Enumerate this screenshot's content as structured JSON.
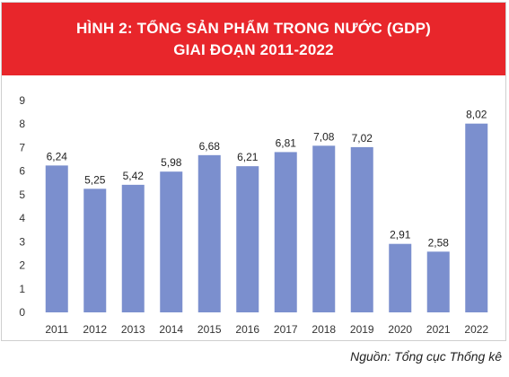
{
  "header": {
    "title_line1": "HÌNH 2: TỔNG SẢN PHẨM TRONG NƯỚC (GDP)",
    "title_line2": "GIAI ĐOẠN 2011-2022"
  },
  "source": "Nguồn: Tổng cục Thống kê",
  "chart_data": {
    "type": "bar",
    "title": "HÌNH 2: TỔNG SẢN PHẨM TRONG NƯỚC (GDP) GIAI ĐOẠN 2011-2022",
    "categories": [
      "2011",
      "2012",
      "2013",
      "2014",
      "2015",
      "2016",
      "2017",
      "2018",
      "2019",
      "2020",
      "2021",
      "2022"
    ],
    "values": [
      6.24,
      5.25,
      5.42,
      5.98,
      6.68,
      6.21,
      6.81,
      7.08,
      7.02,
      2.91,
      2.58,
      8.02
    ],
    "value_labels": [
      "6,24",
      "5,25",
      "5,42",
      "5,98",
      "6,68",
      "6,21",
      "6,81",
      "7,08",
      "7,02",
      "2,91",
      "2,58",
      "8,02"
    ],
    "yticks": [
      "0",
      "1",
      "2",
      "3",
      "4",
      "5",
      "6",
      "7",
      "8",
      "9"
    ],
    "ylim": [
      0,
      9
    ],
    "xlabel": "",
    "ylabel": "",
    "grid": false,
    "legend": "none",
    "bar_color": "#7b8fce",
    "header_color": "#e8262b"
  }
}
